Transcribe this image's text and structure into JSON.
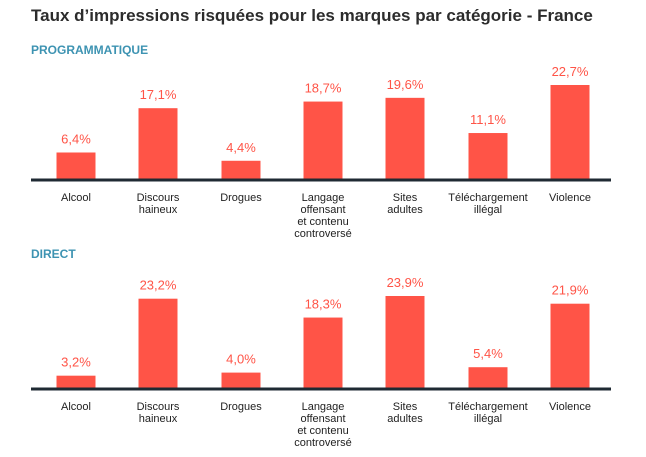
{
  "title": "Taux d’impressions risquées pour les marques par catégorie - France",
  "colors": {
    "bar": "#ff5447",
    "label": "#ff5447",
    "section": "#3d93b2",
    "axis": "#1f2a33",
    "text": "#222222"
  },
  "chart_data": [
    {
      "type": "bar",
      "title": "PROGRAMMATIQUE",
      "categories": [
        [
          "Alcool"
        ],
        [
          "Discours",
          "haineux"
        ],
        [
          "Drogues"
        ],
        [
          "Langage",
          "offensant",
          "et contenu",
          "controversé"
        ],
        [
          "Sites",
          "adultes"
        ],
        [
          "Téléchargement",
          "illégal"
        ],
        [
          "Violence"
        ]
      ],
      "values": [
        6.4,
        17.1,
        4.4,
        18.7,
        19.6,
        11.1,
        22.7
      ],
      "labels": [
        "6,4%",
        "17,1%",
        "4,4%",
        "18,7%",
        "19,6%",
        "11,1%",
        "22,7%"
      ],
      "ylim": [
        0,
        26
      ],
      "grid": false
    },
    {
      "type": "bar",
      "title": "DIRECT",
      "categories": [
        [
          "Alcool"
        ],
        [
          "Discours",
          "haineux"
        ],
        [
          "Drogues"
        ],
        [
          "Langage",
          "offensant",
          "et contenu",
          "controversé"
        ],
        [
          "Sites",
          "adultes"
        ],
        [
          "Téléchargement",
          "illégal"
        ],
        [
          "Violence"
        ]
      ],
      "values": [
        3.2,
        23.2,
        4.0,
        18.3,
        23.9,
        5.4,
        21.9
      ],
      "labels": [
        "3,2%",
        "23,2%",
        "4,0%",
        "18,3%",
        "23,9%",
        "5,4%",
        "21,9%"
      ],
      "ylim": [
        0,
        26
      ],
      "grid": false
    }
  ]
}
